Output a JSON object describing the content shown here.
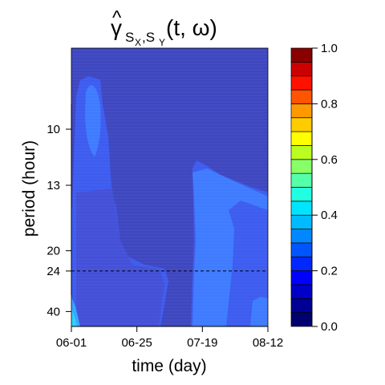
{
  "chart_data": {
    "type": "heatmap",
    "title": {
      "hat": "^",
      "base": "γ",
      "subscript": "S",
      "sub_x": "X",
      "sub_sep": ",S",
      "sub_y": "Y",
      "args": "(t, ω)"
    },
    "xlabel": "time (day)",
    "ylabel": "period (hour)",
    "x_ticks": [
      "06-01",
      "06-25",
      "07-19",
      "08-12"
    ],
    "y_ticks": [
      "10",
      "13",
      "20",
      "24",
      "40"
    ],
    "y_scale": "reciprocal",
    "y_range_hours": [
      7.5,
      53
    ],
    "reference_line_period": 24,
    "colorbar": {
      "ticks": [
        "0.0",
        "0.2",
        "0.4",
        "0.6",
        "0.8",
        "1.0"
      ],
      "range": [
        0,
        1
      ],
      "levels": 20,
      "colors": [
        "#00006E",
        "#000096",
        "#0000C8",
        "#0000FF",
        "#0028FF",
        "#0055FF",
        "#0088FF",
        "#00BBFF",
        "#00E5FF",
        "#22FFE0",
        "#55FFAA",
        "#88FF66",
        "#BBFF22",
        "#FFFF00",
        "#FFCC00",
        "#FF9900",
        "#FF5500",
        "#FF1100",
        "#CC0000",
        "#880000"
      ]
    },
    "regions": [
      {
        "level": 0.1,
        "color": "#4B4BD4"
      },
      {
        "level": 0.15,
        "color": "#3D4AC8"
      },
      {
        "level": 0.2,
        "color": "#3D5CF0"
      },
      {
        "level": 0.25,
        "color": "#3E7BFF"
      }
    ]
  }
}
